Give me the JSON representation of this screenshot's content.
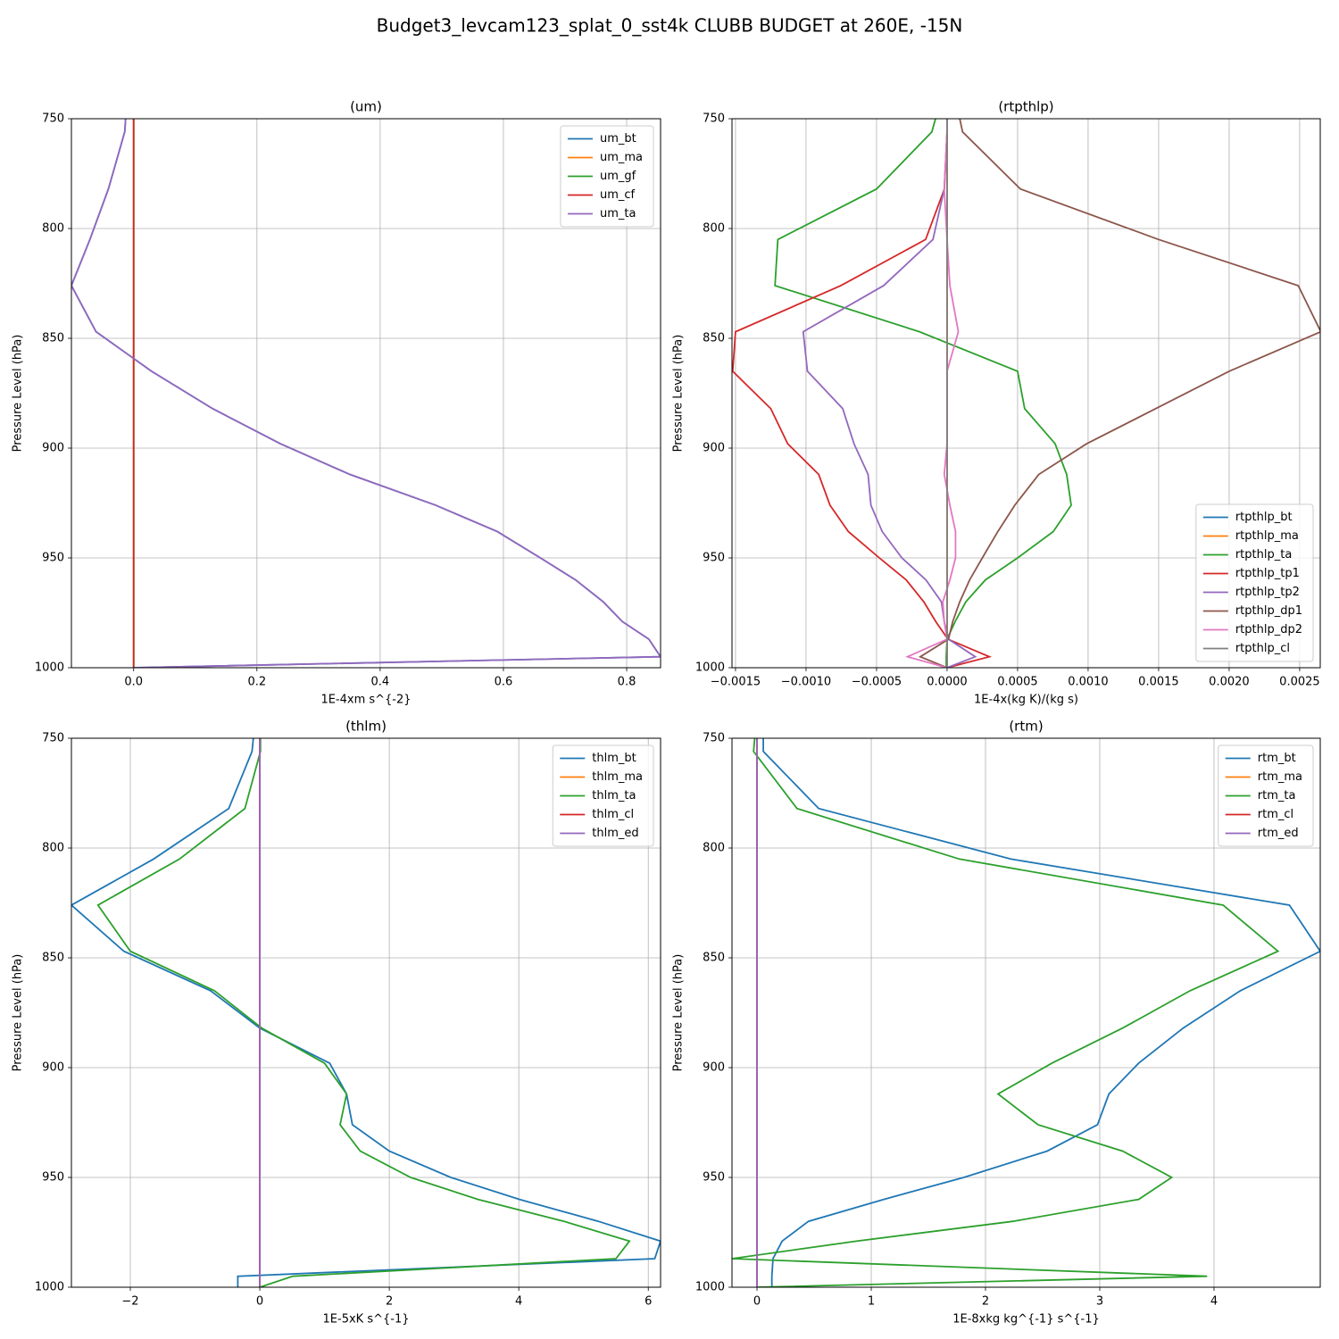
{
  "title": "Budget3_levcam123_splat_0_sst4k CLUBB BUDGET at 260E, -15N",
  "chart_data": [
    {
      "type": "line",
      "title": "(um)",
      "xlabel": "1E-4xm s^{-2}",
      "ylabel": "Pressure Level (hPa)",
      "y": [
        750,
        756,
        782,
        805,
        826,
        847,
        865,
        882,
        898,
        912,
        926,
        938,
        950,
        960,
        970,
        979,
        987,
        995,
        1000
      ],
      "ylim": [
        750,
        1000
      ],
      "y_inverted": true,
      "yticks": [
        750,
        800,
        850,
        900,
        950,
        1000
      ],
      "xlim": [
        -0.101,
        0.855
      ],
      "xticks": [
        {
          "value": 0,
          "label": "0.0"
        },
        0.2,
        0.4,
        0.6,
        0.8
      ],
      "grid": true,
      "legend": "upper right",
      "series": [
        {
          "name": "um_bt",
          "color": "#1f77b4",
          "values": [
            -0.013,
            -0.0145,
            -0.041,
            -0.071,
            -0.101,
            -0.061,
            0.029,
            0.128,
            0.238,
            0.351,
            0.49,
            0.59,
            0.66,
            0.717,
            0.762,
            0.793,
            0.836,
            0.855,
            0
          ]
        },
        {
          "name": "um_ma",
          "color": "#ff7f0e",
          "values": [
            0,
            0,
            0,
            0,
            0,
            0,
            0,
            0,
            0,
            0,
            0,
            0,
            0,
            0,
            0,
            0,
            0,
            0,
            0
          ]
        },
        {
          "name": "um_gf",
          "color": "#2ca02c",
          "values": [
            0,
            0,
            0,
            0,
            0,
            0,
            0,
            0,
            0,
            0,
            0,
            0,
            0,
            0,
            0,
            0,
            0,
            0,
            0
          ]
        },
        {
          "name": "um_cf",
          "color": "#d62728",
          "values": [
            0,
            0,
            0,
            0,
            0,
            0,
            0,
            0,
            0,
            0,
            0,
            0,
            0,
            0,
            0,
            0,
            0,
            0,
            0
          ]
        },
        {
          "name": "um_ta",
          "color": "#9467bd",
          "values": [
            -0.013,
            -0.0145,
            -0.041,
            -0.071,
            -0.101,
            -0.061,
            0.029,
            0.128,
            0.238,
            0.351,
            0.49,
            0.59,
            0.66,
            0.717,
            0.762,
            0.793,
            0.836,
            0.855,
            0
          ]
        }
      ]
    },
    {
      "type": "line",
      "title": "(rtpthlp)",
      "xlabel": "1E-4x(kg K)/(kg s)",
      "ylabel": "Pressure Level (hPa)",
      "y": [
        750,
        756,
        782,
        805,
        826,
        847,
        865,
        882,
        898,
        912,
        926,
        938,
        950,
        960,
        970,
        979,
        987,
        995,
        1000
      ],
      "ylim": [
        750,
        1000
      ],
      "y_inverted": true,
      "yticks": [
        750,
        800,
        850,
        900,
        950,
        1000
      ],
      "xlim": [
        -0.001525,
        0.002646
      ],
      "xticks": [
        {
          "value": -0.0015,
          "label": "−0.0015"
        },
        {
          "value": -0.001,
          "label": "−0.0010"
        },
        {
          "value": -0.0005,
          "label": "−0.0005"
        },
        {
          "value": 0,
          "label": "0.0000"
        },
        {
          "value": 0.0005,
          "label": "0.0005"
        },
        {
          "value": 0.001,
          "label": "0.0010"
        },
        {
          "value": 0.0015,
          "label": "0.0015"
        },
        {
          "value": 0.002,
          "label": "0.0020"
        },
        {
          "value": 0.0025,
          "label": "0.0025"
        }
      ],
      "grid": true,
      "legend": "lower right",
      "series": [
        {
          "name": "rtpthlp_bt",
          "color": "#1f77b4",
          "values": [
            0,
            0,
            0,
            0,
            0,
            0,
            0,
            0,
            0,
            0,
            0,
            0,
            0,
            0,
            0,
            0,
            0,
            0,
            0
          ]
        },
        {
          "name": "rtpthlp_ma",
          "color": "#ff7f0e",
          "values": [
            0,
            0,
            0,
            0,
            0,
            0,
            0,
            0,
            0,
            0,
            0,
            0,
            0,
            0,
            0,
            0,
            0,
            0,
            0
          ]
        },
        {
          "name": "rtpthlp_ta",
          "color": "#2ca02c",
          "values": [
            -8.2e-05,
            -0.000108,
            -0.0005,
            -0.0012,
            -0.00122,
            -0.000196,
            0.0005,
            0.00055,
            0.000766,
            0.000848,
            0.00088,
            0.000753,
            0.0005,
            0.000272,
            0.000133,
            5.7e-05,
            0,
            -6e-06,
            -6e-06
          ]
        },
        {
          "name": "rtpthlp_tp1",
          "color": "#d62728",
          "values": [
            0,
            0,
            -1.9e-05,
            -0.000152,
            -0.000753,
            -0.0015,
            -0.00152,
            -0.00125,
            -0.00113,
            -0.00091,
            -0.00083,
            -0.0007,
            -0.00048,
            -0.00029,
            -0.000165,
            -8e-05,
            6e-06,
            0.0003,
            0
          ]
        },
        {
          "name": "rtpthlp_tp2",
          "color": "#9467bd",
          "values": [
            0,
            0,
            -2e-05,
            -0.0001,
            -0.00045,
            -0.00102,
            -0.00099,
            -0.00074,
            -0.00066,
            -0.00056,
            -0.00054,
            -0.00046,
            -0.00032,
            -0.00015,
            -4e-05,
            -2e-05,
            1e-05,
            0.0002,
            0
          ]
        },
        {
          "name": "rtpthlp_dp1",
          "color": "#8c564b",
          "values": [
            9e-05,
            0.00011,
            0.00052,
            0.0015,
            0.00249,
            0.00265,
            0.002,
            0.00148,
            0.00099,
            0.00065,
            0.00048,
            0.00036,
            0.00025,
            0.00016,
            9e-05,
            4e-05,
            1e-05,
            -0.00019,
            0
          ]
        },
        {
          "name": "rtpthlp_dp2",
          "color": "#e377c2",
          "values": [
            0,
            0,
            -2e-05,
            0,
            2e-05,
            8e-05,
            0,
            0,
            0,
            -2e-05,
            2e-05,
            6e-05,
            6e-05,
            2e-05,
            -3e-05,
            -2e-05,
            0,
            -0.00028,
            0
          ]
        },
        {
          "name": "rtpthlp_cl",
          "color": "#7f7f7f",
          "values": [
            0,
            0,
            0,
            0,
            0,
            0,
            0,
            0,
            0,
            0,
            0,
            0,
            0,
            0,
            0,
            0,
            0,
            0,
            0
          ]
        }
      ]
    },
    {
      "type": "line",
      "title": "(thlm)",
      "xlabel": "1E-5xK s^{-1}",
      "ylabel": "Pressure Level (hPa)",
      "y": [
        750,
        756,
        782,
        805,
        826,
        847,
        865,
        882,
        898,
        912,
        926,
        938,
        950,
        960,
        970,
        979,
        987,
        995,
        1000
      ],
      "ylim": [
        750,
        1000
      ],
      "y_inverted": true,
      "yticks": [
        750,
        800,
        850,
        900,
        950,
        1000
      ],
      "xlim": [
        -2.91,
        6.19
      ],
      "xticks": [
        {
          "value": -2,
          "label": "−2"
        },
        0,
        2,
        4,
        6
      ],
      "grid": true,
      "legend": "upper right",
      "series": [
        {
          "name": "thlm_bt",
          "color": "#1f77b4",
          "values": [
            -0.1,
            -0.12,
            -0.48,
            -1.64,
            -2.91,
            -2.1,
            -0.76,
            0,
            1.08,
            1.34,
            1.43,
            2.0,
            2.95,
            4.01,
            5.23,
            6.19,
            6.1,
            -0.34,
            -0.34
          ]
        },
        {
          "name": "thlm_ma",
          "color": "#ff7f0e",
          "values": [
            0,
            0,
            0,
            0,
            0,
            0,
            0,
            0,
            0,
            0,
            0,
            0,
            0,
            0,
            0,
            0,
            0,
            0,
            0
          ]
        },
        {
          "name": "thlm_ta",
          "color": "#2ca02c",
          "values": [
            0.01,
            0.01,
            -0.23,
            -1.24,
            -2.5,
            -2.0,
            -0.7,
            0.03,
            1.0,
            1.34,
            1.24,
            1.55,
            2.33,
            3.37,
            4.7,
            5.71,
            5.5,
            0.51,
            0
          ]
        },
        {
          "name": "thlm_cl",
          "color": "#d62728",
          "values": [
            0,
            0,
            0,
            0,
            0,
            0,
            0,
            0,
            0,
            0,
            0,
            0,
            0,
            0,
            0,
            0,
            0,
            0,
            0
          ]
        },
        {
          "name": "thlm_ed",
          "color": "#9467bd",
          "values": [
            0,
            0,
            0,
            0,
            0,
            0,
            0,
            0,
            0,
            0,
            0,
            0,
            0,
            0,
            0,
            0,
            0,
            0,
            0
          ]
        }
      ]
    },
    {
      "type": "line",
      "title": "(rtm)",
      "xlabel": "1E-8xkg kg^{-1} s^{-1}",
      "ylabel": "Pressure Level (hPa)",
      "y": [
        750,
        756,
        782,
        805,
        826,
        847,
        865,
        882,
        898,
        912,
        926,
        938,
        950,
        960,
        970,
        979,
        987,
        995,
        1000
      ],
      "ylim": [
        750,
        1000
      ],
      "y_inverted": true,
      "yticks": [
        750,
        800,
        850,
        900,
        950,
        1000
      ],
      "xlim": [
        -0.219,
        4.93
      ],
      "xticks": [
        0,
        1,
        2,
        3,
        4
      ],
      "grid": true,
      "legend": "upper right",
      "series": [
        {
          "name": "rtm_bt",
          "color": "#1f77b4",
          "values": [
            0.055,
            0.055,
            0.54,
            2.22,
            4.66,
            4.93,
            4.23,
            3.73,
            3.34,
            3.08,
            2.98,
            2.54,
            1.81,
            1.11,
            0.45,
            0.22,
            0.14,
            0.13,
            0.13
          ]
        },
        {
          "name": "rtm_ma",
          "color": "#ff7f0e",
          "values": [
            0,
            0,
            0,
            0,
            0,
            0,
            0,
            0,
            0,
            0,
            0,
            0,
            0,
            0,
            0,
            0,
            0,
            0,
            0
          ]
        },
        {
          "name": "rtm_ta",
          "color": "#2ca02c",
          "values": [
            -0.02,
            -0.03,
            0.35,
            1.77,
            4.08,
            4.56,
            3.79,
            3.2,
            2.58,
            2.11,
            2.46,
            3.2,
            3.63,
            3.34,
            2.24,
            0.87,
            -0.22,
            3.94,
            0
          ]
        },
        {
          "name": "rtm_cl",
          "color": "#d62728",
          "values": [
            0,
            0,
            0,
            0,
            0,
            0,
            0,
            0,
            0,
            0,
            0,
            0,
            0,
            0,
            0,
            0,
            0,
            0,
            0
          ]
        },
        {
          "name": "rtm_ed",
          "color": "#9467bd",
          "values": [
            0,
            0,
            0,
            0,
            0,
            0,
            0,
            0,
            0,
            0,
            0,
            0,
            0,
            0,
            0,
            0,
            0,
            0,
            0
          ]
        }
      ]
    }
  ]
}
